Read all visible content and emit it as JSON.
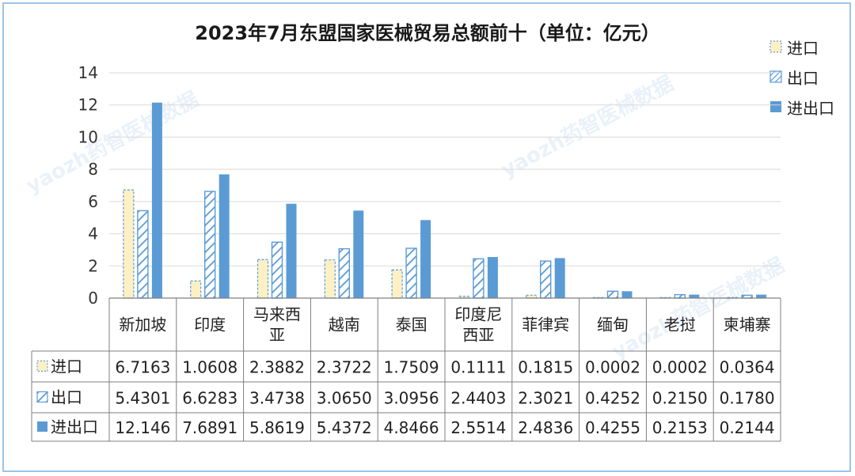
{
  "chart_data": {
    "type": "bar",
    "title": "2023年7月东盟国家医械贸易总额前十（单位：亿元）",
    "categories": [
      "新加坡",
      "印度",
      "马来西亚",
      "越南",
      "泰国",
      "印度尼西亚",
      "菲律宾",
      "缅甸",
      "老挝",
      "柬埔寨"
    ],
    "category_lines": [
      [
        "新加坡"
      ],
      [
        "印度"
      ],
      [
        "马来西",
        "亚"
      ],
      [
        "越南"
      ],
      [
        "泰国"
      ],
      [
        "印度尼",
        "西亚"
      ],
      [
        "菲律宾"
      ],
      [
        "缅甸"
      ],
      [
        "老挝"
      ],
      [
        "柬埔寨"
      ]
    ],
    "series": [
      {
        "name": "进口",
        "values": [
          6.7163,
          1.0608,
          2.3882,
          2.3722,
          1.7509,
          0.1111,
          0.1815,
          0.0002,
          0.0002,
          0.0364
        ],
        "labels": [
          "6.7163",
          "1.0608",
          "2.3882",
          "2.3722",
          "1.7509",
          "0.1111",
          "0.1815",
          "0.0002",
          "0.0002",
          "0.0364"
        ],
        "fill": "#fdf0c4",
        "stroke": "#5b9bd5",
        "pattern": "dashed"
      },
      {
        "name": "出口",
        "values": [
          5.4301,
          6.6283,
          3.4738,
          3.065,
          3.0956,
          2.4403,
          2.3021,
          0.4252,
          0.215,
          0.178
        ],
        "labels": [
          "5.4301",
          "6.6283",
          "3.4738",
          "3.0650",
          "3.0956",
          "2.4403",
          "2.3021",
          "0.4252",
          "0.2150",
          "0.1780"
        ],
        "fill": "#5b9bd5",
        "stroke": "#5b9bd5",
        "pattern": "diagonal"
      },
      {
        "name": "进出口",
        "values": [
          12.146,
          7.6891,
          5.8619,
          5.4372,
          4.8466,
          2.5514,
          2.4836,
          0.4255,
          0.2153,
          0.2144
        ],
        "labels": [
          "12.146",
          "7.6891",
          "5.8619",
          "5.4372",
          "4.8466",
          "2.5514",
          "2.4836",
          "0.4255",
          "0.2153",
          "0.2144"
        ],
        "fill": "#5b9bd5",
        "stroke": "#5b9bd5",
        "pattern": "solid"
      }
    ],
    "ylim": [
      0,
      14
    ],
    "yticks": [
      0,
      2,
      4,
      6,
      8,
      10,
      12,
      14
    ],
    "grid": true,
    "legend_position": "top-right",
    "data_table": true
  },
  "watermark": "yaozh药智医械数据",
  "colors": {
    "axis": "#7f7f7f",
    "grid": "#d9d9d9",
    "table_border": "#7f7f7f",
    "frame": "#9dc3e6"
  }
}
